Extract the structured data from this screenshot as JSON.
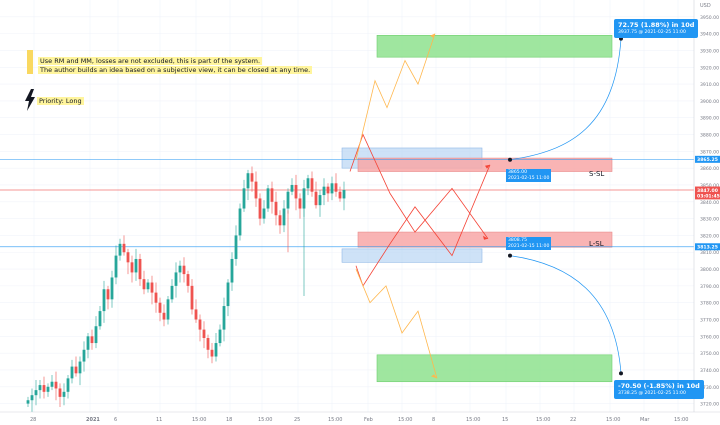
{
  "notes": {
    "line1": "Use RM and MM, losses are not excluded, this is part of the system.",
    "line2": "The author builds an idea based on a subjective view, it can be closed at any time.",
    "priority": "Priority: Long"
  },
  "targets": {
    "upper": {
      "headline": "72.75 (1.88%) in 10d",
      "detail": "3937.75 @ 2021-02-25  11:00"
    },
    "lower": {
      "headline": "-70.50 (-1.85%) in 10d",
      "detail": "3738.25 @ 2021-02-25  11:00"
    }
  },
  "entries": {
    "upper": {
      "price": "3865.00",
      "time": "2021-02-15 11:00",
      "label": "S-SL"
    },
    "lower": {
      "price": "3808.75",
      "time": "2021-02-15 11:00",
      "label": "L-SL"
    }
  },
  "colors": {
    "up": "#26a69a",
    "down": "#ef5350",
    "accent": "#2196f3",
    "zone_green": "#8ee28e",
    "zone_red": "#f8a7a7",
    "zone_blue": "#b9d5f3",
    "path_red": "#f44336",
    "path_orange": "#ffb74d"
  },
  "chart_data": {
    "type": "candlestick",
    "axis": {
      "y_ticks": [
        3720,
        3730,
        3740,
        3750,
        3760,
        3770,
        3780,
        3790,
        3800,
        3810,
        3820,
        3830,
        3840,
        3850,
        3860,
        3870,
        3880,
        3890,
        3900,
        3910,
        3920,
        3930,
        3940,
        3950
      ],
      "y_top_label": "USD",
      "x_ticks": [
        "28",
        "2021",
        "6",
        "11",
        "15:00",
        "18",
        "15:00",
        "25",
        "15:00",
        "Feb",
        "15:00",
        "8",
        "15:00",
        "15",
        "15:00",
        "22",
        "15:00",
        "Mar",
        "15:00"
      ],
      "ylim": [
        3715,
        3960
      ]
    },
    "price_tags": [
      {
        "value": 3865.25,
        "text": "3865.25",
        "color": "#2196f3"
      },
      {
        "value": 3847.0,
        "text": "3847.00",
        "color": "#ef5350"
      },
      {
        "value": 3843.5,
        "text": "03:01:45",
        "color": "#ef5350"
      },
      {
        "value": 3813.25,
        "text": "3813.25",
        "color": "#2196f3"
      }
    ],
    "horizontal_lines": [
      {
        "value": 3865.25,
        "color": "#2196f3"
      },
      {
        "value": 3813.25,
        "color": "#2196f3"
      },
      {
        "value": 3847.0,
        "color": "#ef5350"
      }
    ],
    "candles_close": [
      3722,
      3725,
      3728,
      3731,
      3727,
      3730,
      3733,
      3729,
      3724,
      3727,
      3735,
      3742,
      3738,
      3745,
      3752,
      3760,
      3756,
      3766,
      3775,
      3788,
      3782,
      3795,
      3808,
      3815,
      3810,
      3804,
      3798,
      3806,
      3794,
      3788,
      3792,
      3786,
      3780,
      3774,
      3770,
      3782,
      3790,
      3798,
      3802,
      3797,
      3790,
      3776,
      3770,
      3764,
      3759,
      3752,
      3748,
      3756,
      3764,
      3778,
      3792,
      3806,
      3820,
      3836,
      3848,
      3857,
      3852,
      3842,
      3830,
      3836,
      3848,
      3840,
      3832,
      3826,
      3836,
      3846,
      3850,
      3842,
      3836,
      3848,
      3854,
      3846,
      3838,
      3844,
      3849,
      3845,
      3851,
      3846,
      3842,
      3847
    ]
  }
}
